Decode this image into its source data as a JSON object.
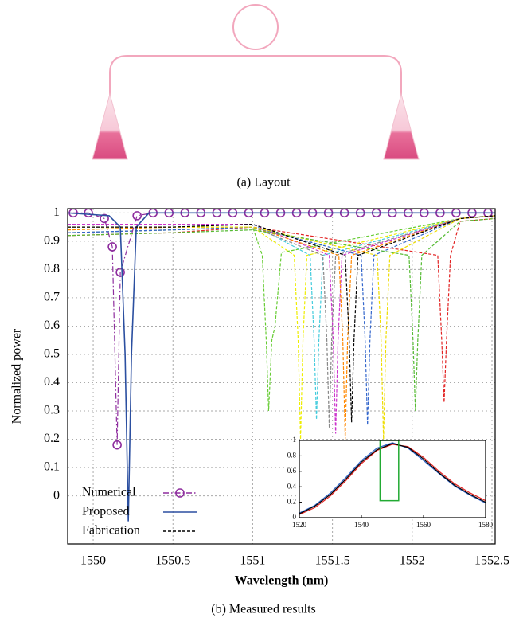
{
  "figure_a": {
    "caption": "(a) Layout"
  },
  "chart_data": [
    {
      "type": "line",
      "caption": "(b) Measured results",
      "xlabel": "Wavelength (nm)",
      "ylabel": "Normalized power",
      "xlim": [
        1549.84,
        1552.52
      ],
      "ylim": [
        -0.17,
        1.015
      ],
      "xticks": [
        1550,
        1550.5,
        1551,
        1551.5,
        1552,
        1552.5
      ],
      "yticks": [
        0,
        0.1,
        0.2,
        0.3,
        0.4,
        0.5,
        0.6,
        0.7,
        0.8,
        0.9,
        1
      ],
      "grid": true,
      "legend": "lower left",
      "series": [
        {
          "color": "#66cc33",
          "linestyle": "dashed",
          "x": [
            1549.84,
            1550.5,
            1551.0,
            1551.06,
            1551.085,
            1551.1,
            1551.12,
            1551.14,
            1551.18,
            1552.3,
            1552.52
          ],
          "values": [
            0.93,
            0.94,
            0.95,
            0.85,
            0.55,
            0.3,
            0.55,
            0.6,
            0.86,
            0.98,
            0.99
          ]
        },
        {
          "color": "#e22222",
          "linestyle": "dashed",
          "x": [
            1549.84,
            1550.5,
            1551.0,
            1552.16,
            1552.185,
            1552.2,
            1552.215,
            1552.24,
            1552.3,
            1552.52
          ],
          "values": [
            0.92,
            0.93,
            0.95,
            0.85,
            0.55,
            0.33,
            0.55,
            0.85,
            0.97,
            0.98
          ]
        },
        {
          "color": "#eeee00",
          "linestyle": "dashed",
          "x": [
            1549.84,
            1550.5,
            1551.0,
            1551.26,
            1551.285,
            1551.3,
            1551.315,
            1551.34,
            1552.3,
            1552.52
          ],
          "values": [
            0.94,
            0.95,
            0.95,
            0.85,
            0.55,
            0.2,
            0.55,
            0.85,
            0.98,
            0.99
          ]
        },
        {
          "color": "#44ccdd",
          "linestyle": "dashed",
          "x": [
            1549.84,
            1550.5,
            1551.0,
            1551.36,
            1551.385,
            1551.4,
            1551.415,
            1551.44,
            1552.3,
            1552.52
          ],
          "values": [
            0.95,
            0.95,
            0.96,
            0.85,
            0.55,
            0.27,
            0.55,
            0.85,
            0.98,
            0.99
          ]
        },
        {
          "color": "#888888",
          "linestyle": "dashed",
          "x": [
            1549.84,
            1550.5,
            1551.0,
            1551.44,
            1551.465,
            1551.48,
            1551.495,
            1551.52,
            1552.3,
            1552.52
          ],
          "values": [
            0.93,
            0.94,
            0.95,
            0.85,
            0.55,
            0.24,
            0.55,
            0.85,
            0.98,
            0.99
          ]
        },
        {
          "color": "#cc33cc",
          "linestyle": "dashed",
          "x": [
            1549.84,
            1550.5,
            1551.0,
            1551.48,
            1551.505,
            1551.52,
            1551.535,
            1551.56,
            1552.3,
            1552.52
          ],
          "values": [
            0.96,
            0.96,
            0.96,
            0.85,
            0.55,
            0.22,
            0.55,
            0.85,
            0.98,
            0.99
          ]
        },
        {
          "color": "#ff8800",
          "linestyle": "dashed",
          "x": [
            1549.84,
            1550.5,
            1551.0,
            1551.54,
            1551.565,
            1551.58,
            1551.595,
            1551.62,
            1552.3,
            1552.52
          ],
          "values": [
            0.94,
            0.95,
            0.95,
            0.85,
            0.55,
            0.2,
            0.55,
            0.85,
            0.98,
            0.99
          ]
        },
        {
          "color": "#3366cc",
          "linestyle": "dashed",
          "x": [
            1549.84,
            1550.5,
            1551.0,
            1551.68,
            1551.705,
            1551.72,
            1551.735,
            1551.76,
            1552.3,
            1552.52
          ],
          "values": [
            0.93,
            0.94,
            0.95,
            0.85,
            0.55,
            0.25,
            0.55,
            0.85,
            0.98,
            0.99
          ]
        },
        {
          "color": "#eedd00",
          "linestyle": "dashed",
          "x": [
            1549.84,
            1550.5,
            1551.0,
            1551.78,
            1551.805,
            1551.82,
            1551.835,
            1551.86,
            1552.3,
            1552.52
          ],
          "values": [
            0.95,
            0.95,
            0.95,
            0.85,
            0.55,
            0.2,
            0.55,
            0.85,
            0.98,
            0.99
          ]
        },
        {
          "color": "#55bb33",
          "linestyle": "dashed",
          "x": [
            1549.84,
            1550.5,
            1551.0,
            1551.98,
            1552.005,
            1552.02,
            1552.035,
            1552.06,
            1552.3,
            1552.52
          ],
          "values": [
            0.92,
            0.93,
            0.94,
            0.85,
            0.55,
            0.3,
            0.55,
            0.85,
            0.97,
            0.98
          ]
        },
        {
          "name": "Numerical",
          "color": "#8e2d9e",
          "linestyle": "dashdot",
          "marker": "circle",
          "x": [
            1549.875,
            1549.97,
            1550.07,
            1550.12,
            1550.15,
            1550.17,
            1550.275,
            1550.375,
            1550.475,
            1550.575,
            1550.675,
            1550.775,
            1550.875,
            1550.975,
            1551.075,
            1551.175,
            1551.275,
            1551.375,
            1551.475,
            1551.575,
            1551.675,
            1551.775,
            1551.875,
            1551.975,
            1552.075,
            1552.175,
            1552.275,
            1552.375,
            1552.475
          ],
          "values": [
            1,
            1,
            0.98,
            0.88,
            0.18,
            0.79,
            0.99,
            1,
            1,
            1,
            1,
            1,
            1,
            1,
            1,
            1,
            1,
            1,
            1,
            1,
            1,
            1,
            1,
            1,
            1,
            1,
            1,
            1,
            1
          ]
        },
        {
          "name": "Proposed",
          "color": "#2b4fa0",
          "linestyle": "solid",
          "x": [
            1549.84,
            1550.1,
            1550.17,
            1550.2,
            1550.22,
            1550.24,
            1550.27,
            1550.35,
            1552.52
          ],
          "values": [
            1,
            0.99,
            0.95,
            0.5,
            -0.09,
            0.5,
            0.95,
            1,
            1
          ]
        },
        {
          "name": "Fabrication",
          "color": "#000000",
          "linestyle": "dashed",
          "x": [
            1549.84,
            1550.5,
            1551.0,
            1551.58,
            1551.605,
            1551.62,
            1551.635,
            1551.66,
            1552.3,
            1552.52
          ],
          "values": [
            0.95,
            0.95,
            0.96,
            0.85,
            0.55,
            0.26,
            0.55,
            0.85,
            0.98,
            0.99
          ]
        }
      ]
    },
    {
      "type": "line",
      "xlim": [
        1520,
        1580
      ],
      "ylim": [
        0,
        1
      ],
      "xticks": [
        1520,
        1540,
        1560,
        1580
      ],
      "yticks": [
        0,
        0.2,
        0.4,
        0.6,
        0.8,
        1
      ],
      "zoom_box": {
        "color": "#22aa33",
        "x": [
          1546,
          1552
        ],
        "y": [
          0.22,
          1.0
        ]
      },
      "series": [
        {
          "color": "#e22222",
          "linestyle": "solid",
          "x": [
            1520,
            1525,
            1530,
            1535,
            1540,
            1545,
            1550,
            1555,
            1560,
            1565,
            1570,
            1575,
            1580
          ],
          "values": [
            0.04,
            0.13,
            0.28,
            0.48,
            0.7,
            0.87,
            0.95,
            0.92,
            0.78,
            0.6,
            0.44,
            0.32,
            0.22
          ]
        },
        {
          "color": "#3366cc",
          "linestyle": "solid",
          "x": [
            1520,
            1525,
            1530,
            1535,
            1540,
            1545,
            1550,
            1555,
            1560,
            1565,
            1570,
            1575,
            1580
          ],
          "values": [
            0.06,
            0.16,
            0.32,
            0.52,
            0.74,
            0.9,
            0.97,
            0.9,
            0.74,
            0.57,
            0.41,
            0.29,
            0.19
          ]
        },
        {
          "color": "#000000",
          "linestyle": "solid",
          "x": [
            1520,
            1525,
            1530,
            1535,
            1540,
            1545,
            1550,
            1555,
            1560,
            1565,
            1570,
            1575,
            1580
          ],
          "values": [
            0.05,
            0.15,
            0.3,
            0.5,
            0.72,
            0.88,
            0.96,
            0.91,
            0.76,
            0.58,
            0.42,
            0.3,
            0.2
          ]
        }
      ]
    }
  ]
}
